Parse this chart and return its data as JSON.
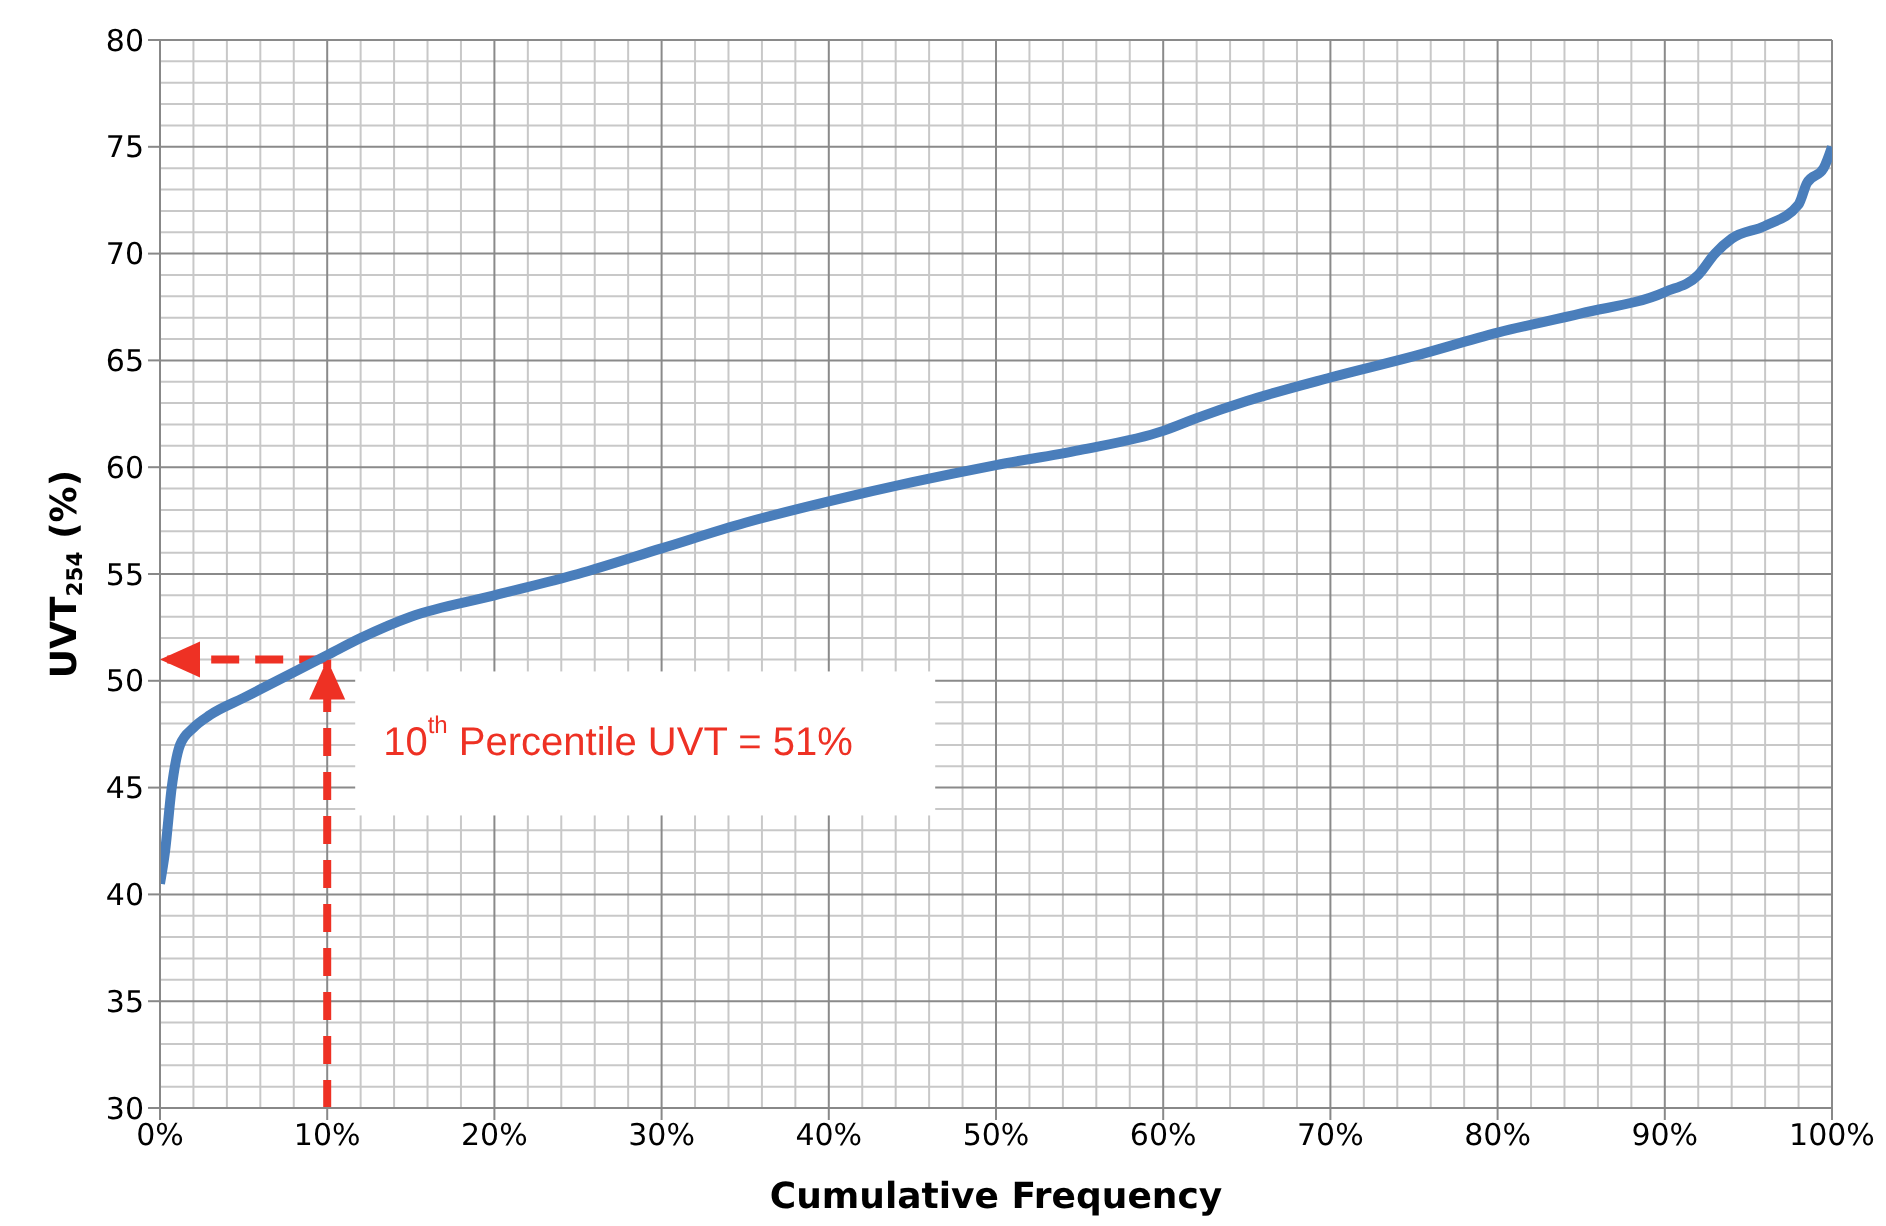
{
  "chart_data": {
    "type": "line",
    "xlabel": "Cumulative Frequency",
    "ylabel": "UVT$_{254}$ (%)",
    "x": [
      0,
      0.3,
      0.7,
      1.2,
      2,
      3,
      5,
      7,
      10,
      12,
      15,
      20,
      25,
      30,
      35,
      40,
      45,
      50,
      55,
      60,
      62,
      65,
      70,
      75,
      80,
      85,
      90,
      92,
      93,
      94,
      96,
      98,
      98.5,
      99.5,
      100
    ],
    "series": [
      {
        "color": "#4a7ebb",
        "values": [
          40.5,
          42,
          45,
          47,
          47.8,
          48.4,
          49.2,
          50,
          51.2,
          52,
          53,
          54,
          55,
          56.2,
          57.4,
          58.4,
          59.3,
          60.1,
          60.8,
          61.7,
          62.3,
          63.1,
          64.2,
          65.2,
          66.3,
          67.2,
          68.2,
          69,
          70,
          70.7,
          71.3,
          72.3,
          73.3,
          74,
          75
        ]
      }
    ],
    "xlim": [
      0,
      100
    ],
    "xticks": [
      {
        "value": 0,
        "label": "0%"
      },
      {
        "value": 10,
        "label": "10%"
      },
      {
        "value": 20,
        "label": "20%"
      },
      {
        "value": 30,
        "label": "30%"
      },
      {
        "value": 40,
        "label": "40%"
      },
      {
        "value": 50,
        "label": "50%"
      },
      {
        "value": 60,
        "label": "60%"
      },
      {
        "value": 70,
        "label": "70%"
      },
      {
        "value": 80,
        "label": "80%"
      },
      {
        "value": 90,
        "label": "90%"
      },
      {
        "value": 100,
        "label": "100%"
      }
    ],
    "ylim": [
      30,
      80
    ],
    "yticks": [
      30,
      35,
      40,
      45,
      50,
      55,
      60,
      65,
      70,
      75,
      80
    ],
    "grid": true,
    "marker": "none",
    "line_style": "solid",
    "ref_lines": [
      {
        "axis": "x",
        "value": 10,
        "color": "#ee3124",
        "line_style": "dashed"
      },
      {
        "axis": "y",
        "value": 51,
        "color": "#ee3124",
        "line_style": "dashed"
      }
    ],
    "annotations": [
      {
        "text": "10$^{th}$ Percentile UVT = 51%",
        "x": 10,
        "y": 51
      }
    ]
  }
}
